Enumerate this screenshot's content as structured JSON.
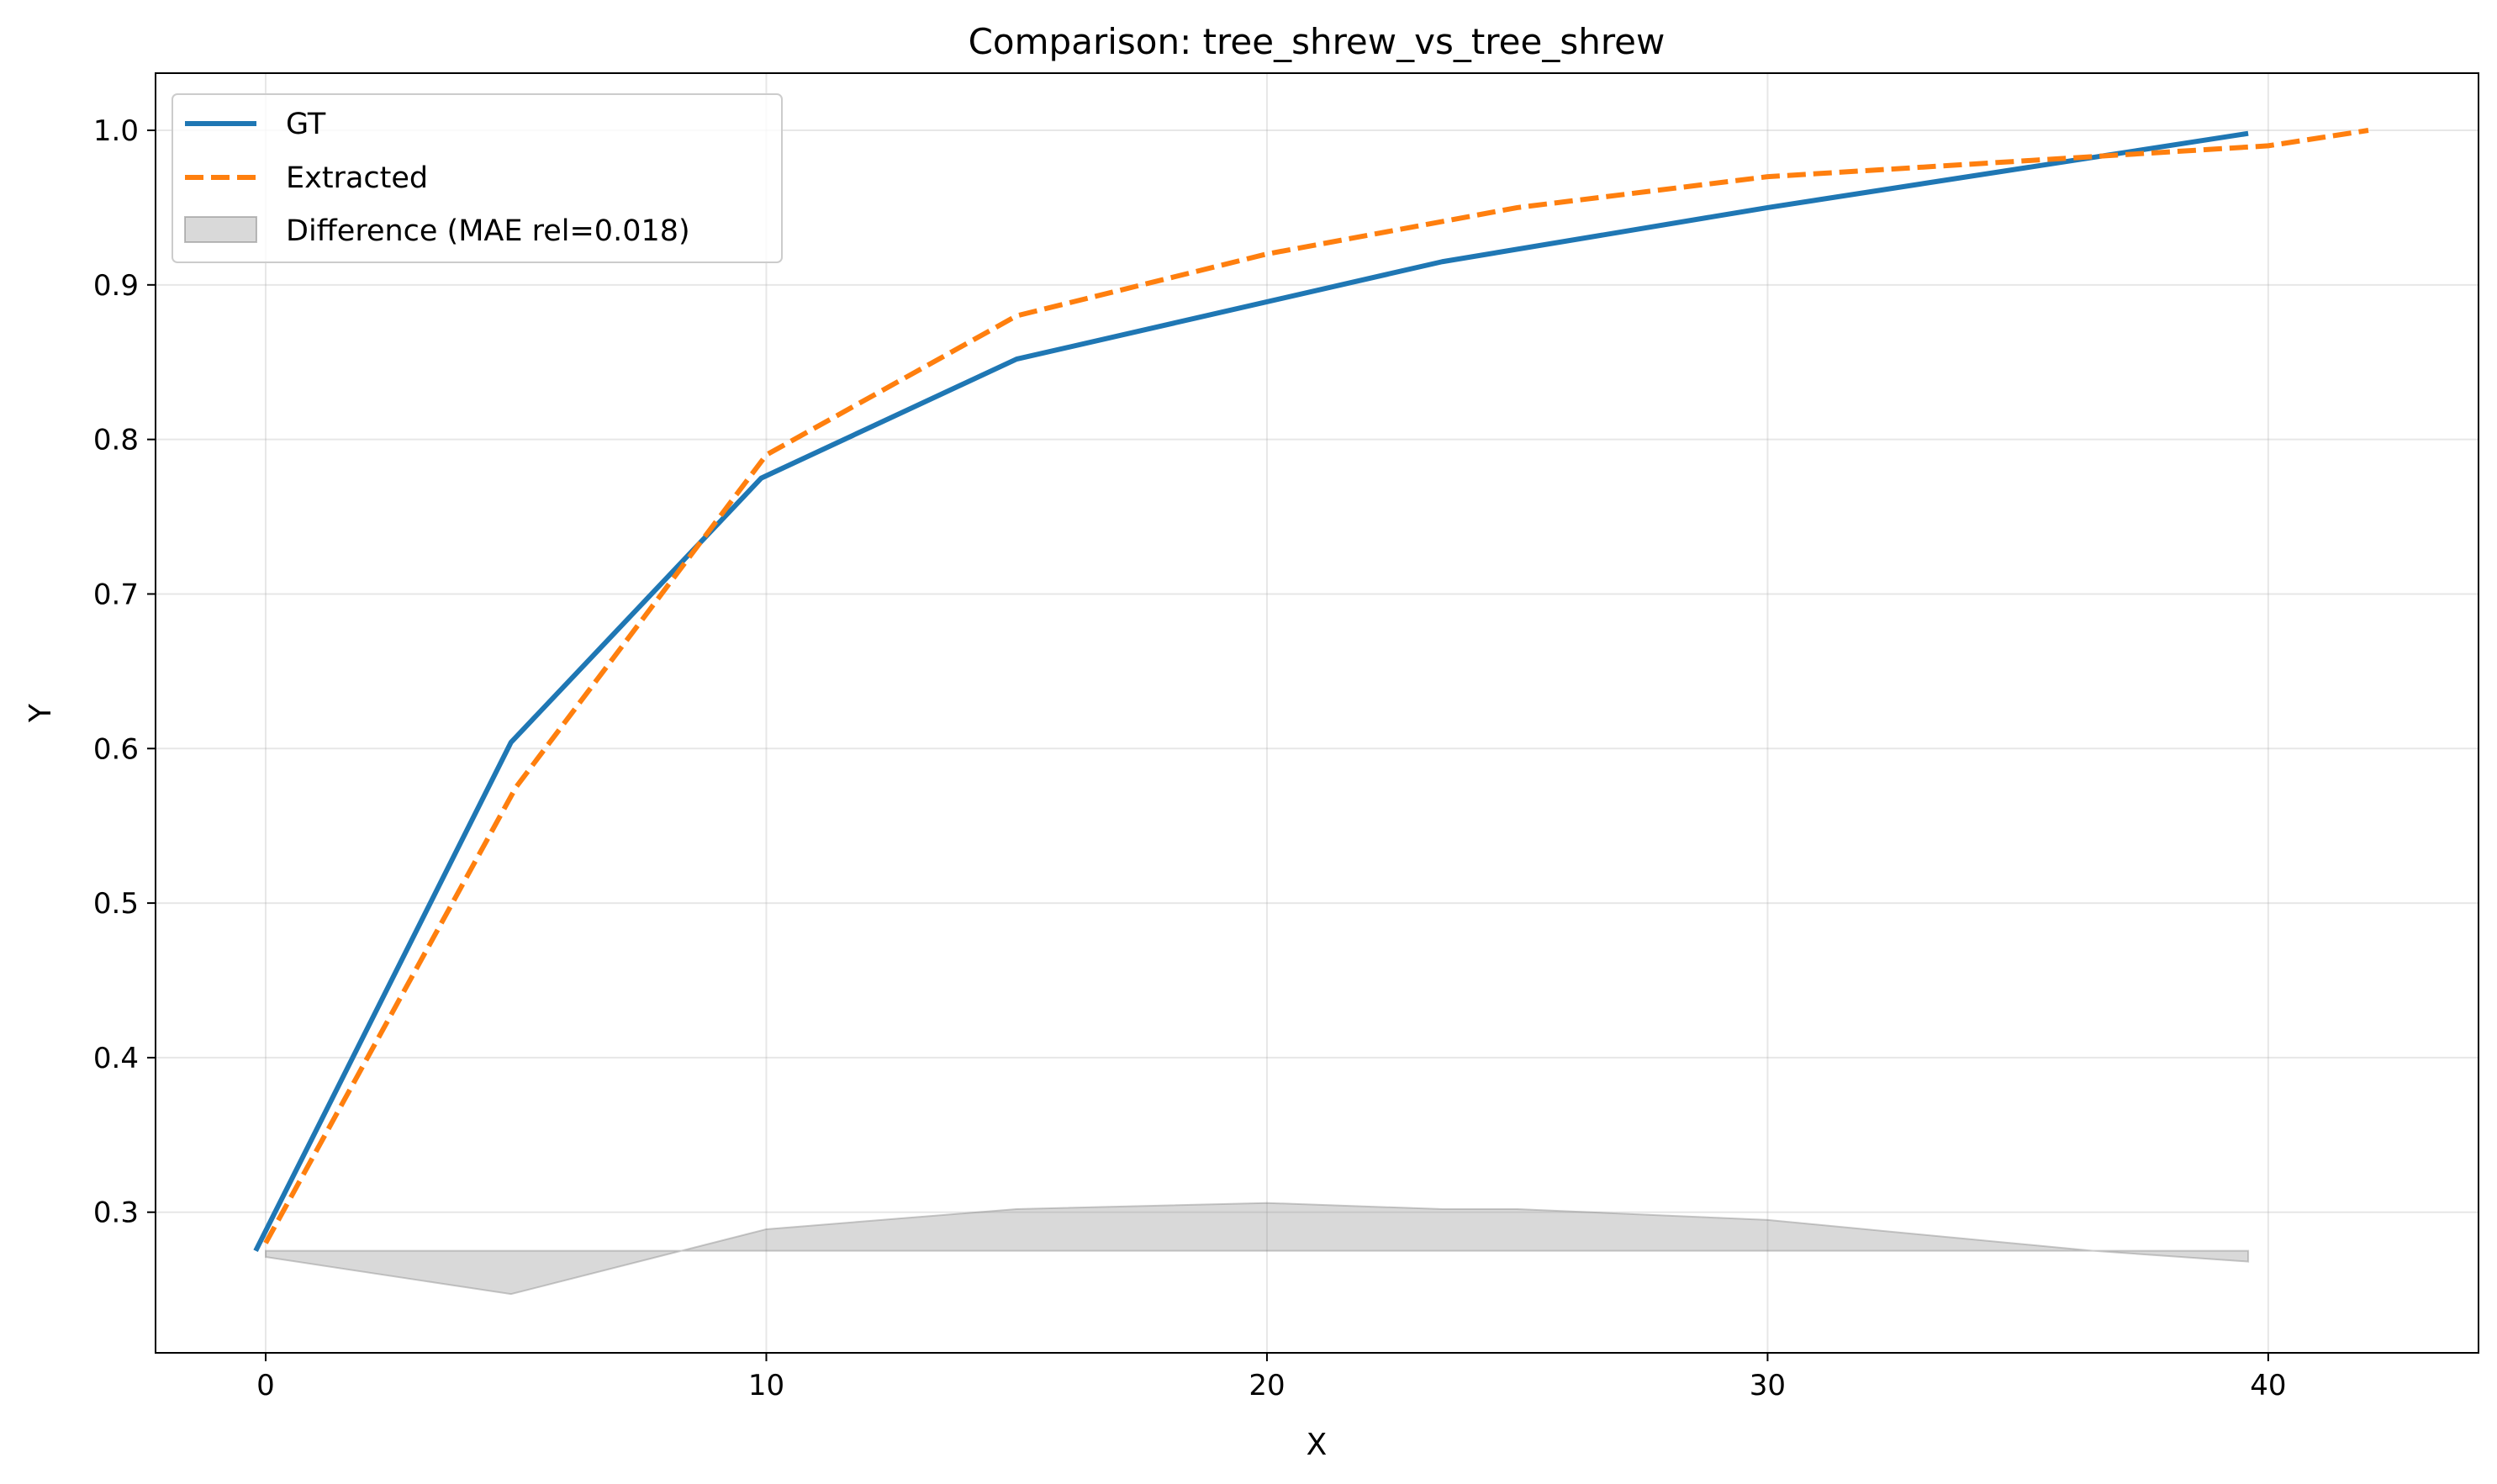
{
  "chart_data": {
    "type": "line",
    "title": "Comparison: tree_shrew_vs_tree_shrew",
    "xlabel": "X",
    "ylabel": "Y",
    "xlim": [
      -2.2,
      44.2
    ],
    "ylim": [
      0.209,
      1.037
    ],
    "xticks": [
      0,
      10,
      20,
      30,
      40
    ],
    "yticks": [
      0.3,
      0.4,
      0.5,
      0.6,
      0.7,
      0.8,
      0.9,
      1.0
    ],
    "xtick_labels": [
      "0",
      "10",
      "20",
      "30",
      "40"
    ],
    "ytick_labels": [
      "0.3",
      "0.4",
      "0.5",
      "0.6",
      "0.7",
      "0.8",
      "0.9",
      "1.0"
    ],
    "grid": true,
    "legend_position": "upper-left",
    "series": [
      {
        "name": "GT",
        "color": "#1f77b4",
        "style": "solid",
        "x": [
          -0.2,
          4.9,
          9.9,
          15.0,
          23.5,
          30.0,
          39.6
        ],
        "y": [
          0.275,
          0.604,
          0.775,
          0.852,
          0.915,
          0.95,
          0.998
        ]
      },
      {
        "name": "Extracted",
        "color": "#ff7f0e",
        "style": "dashed",
        "x": [
          0.0,
          5.0,
          10.0,
          15.0,
          20.0,
          25.0,
          30.0,
          35.0,
          40.0,
          42.0
        ],
        "y": [
          0.28,
          0.575,
          0.79,
          0.88,
          0.92,
          0.95,
          0.97,
          0.98,
          0.99,
          1.0
        ]
      }
    ],
    "difference_band": {
      "label": "Difference (MAE rel=0.018)",
      "color": "#808080",
      "baseline": 0.275,
      "x": [
        0.0,
        4.9,
        10.0,
        15.0,
        20.0,
        23.5,
        25.0,
        30.0,
        36.5,
        39.6
      ],
      "y": [
        0.271,
        0.247,
        0.289,
        0.302,
        0.306,
        0.302,
        0.302,
        0.295,
        0.275,
        0.268
      ]
    }
  }
}
